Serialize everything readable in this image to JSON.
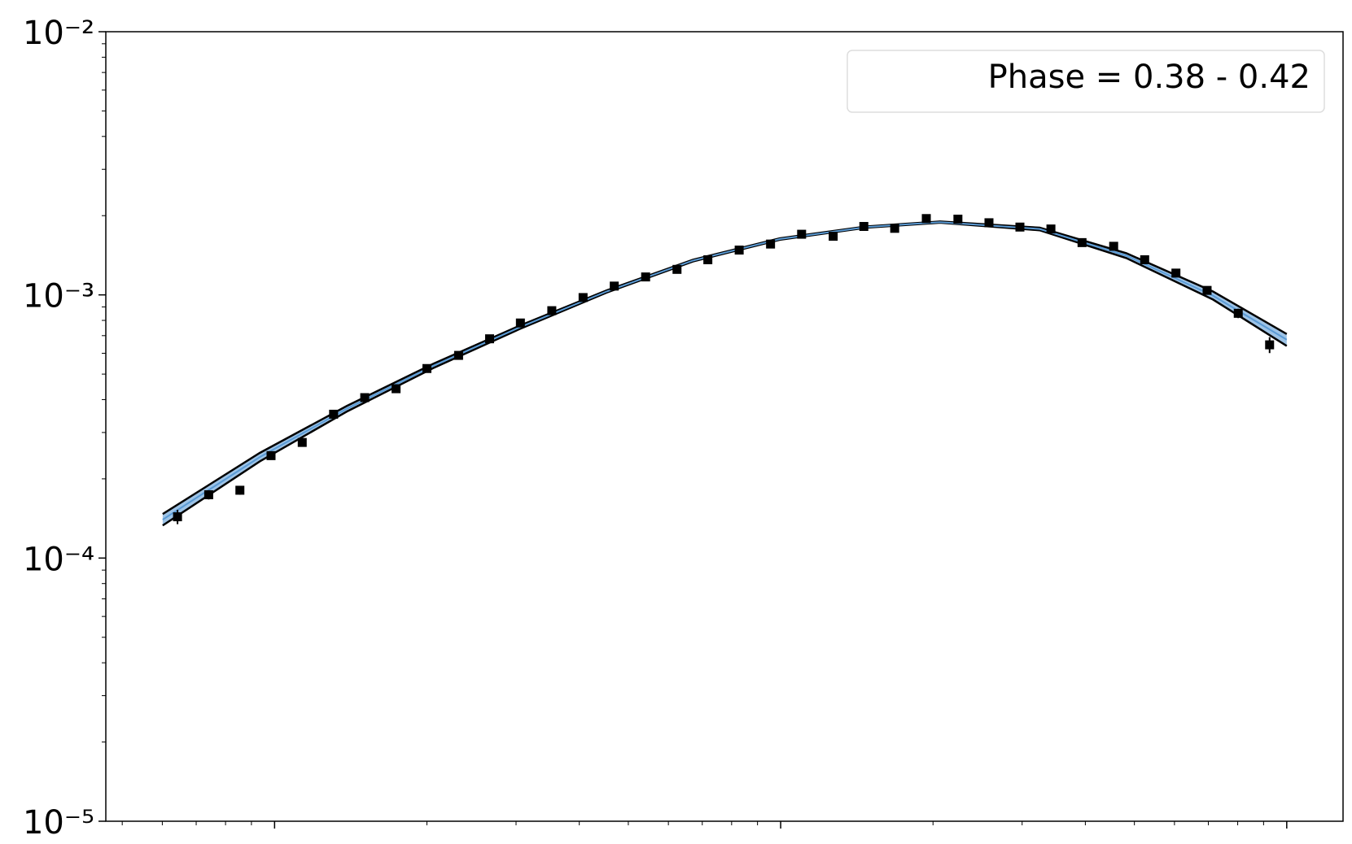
{
  "chart_data": {
    "type": "scatter",
    "log_x": true,
    "log_y": true,
    "xlim": [
      0.464,
      129.2
    ],
    "xticks": [
      1,
      10,
      100
    ],
    "ylim": [
      1e-05,
      0.01
    ],
    "yticks": [
      {
        "value": 0.01,
        "label": "10⁻²"
      },
      {
        "value": 0.001,
        "label": "10⁻³"
      },
      {
        "value": 0.0001,
        "label": "10⁻⁴"
      },
      {
        "value": 1e-05,
        "label": "10⁻⁵"
      }
    ],
    "legend_text": "Phase = 0.38 - 0.42",
    "legend_position": "upper right",
    "color": "#000000",
    "x": [
      0.643,
      0.741,
      0.854,
      0.984,
      1.134,
      1.308,
      1.507,
      1.738,
      2.0,
      2.31,
      2.66,
      3.06,
      3.53,
      4.07,
      4.69,
      5.41,
      6.24,
      7.18,
      8.28,
      9.55,
      11.0,
      12.7,
      14.6,
      16.8,
      19.4,
      22.4,
      25.8,
      29.7,
      34.2,
      39.4,
      45.5,
      52.4,
      60.4,
      69.6,
      80.2,
      92.5
    ],
    "values": [
      0.0001435,
      0.000174,
      0.000181,
      0.000245,
      0.000275,
      0.000352,
      0.000407,
      0.00044,
      0.000525,
      0.000589,
      0.000681,
      0.000782,
      0.000871,
      0.000977,
      0.00108,
      0.00117,
      0.00125,
      0.00136,
      0.00148,
      0.00156,
      0.0017,
      0.00167,
      0.00182,
      0.00179,
      0.00195,
      0.00194,
      0.00188,
      0.00181,
      0.00178,
      0.00158,
      0.00153,
      0.00136,
      0.00121,
      0.00104,
      0.000851,
      0.000646
    ],
    "errors": [
      9e-06,
      7e-06,
      7e-06,
      8e-06,
      8e-06,
      9e-06,
      1e-05,
      1e-05,
      1.1e-05,
      1.2e-05,
      1.3e-05,
      1.4e-05,
      1.5e-05,
      1.6e-05,
      1.7e-05,
      1.8e-05,
      1.9e-05,
      2e-05,
      2.1e-05,
      2.2e-05,
      2.4e-05,
      2.5e-05,
      2.7e-05,
      2.8e-05,
      3e-05,
      3e-05,
      3e-05,
      3e-05,
      3e-05,
      3e-05,
      3e-05,
      3e-05,
      3e-05,
      3.2e-05,
      3.5e-05,
      4.5e-05
    ],
    "model": {
      "color": "#5b9bd5",
      "edge_color": "#000000",
      "x": [
        0.601,
        0.935,
        1.388,
        2.057,
        3.05,
        4.53,
        6.71,
        9.96,
        14.78,
        20.65,
        32.5,
        48.2,
        71.5,
        100
      ],
      "values": [
        0.00014,
        0.000242,
        0.000369,
        0.000537,
        0.000753,
        0.00103,
        0.00135,
        0.00163,
        0.00181,
        0.00189,
        0.00178,
        0.00141,
        0.000993,
        0.000676
      ],
      "lower": [
        0.000133,
        0.000233,
        0.00036,
        0.000527,
        0.000742,
        0.00102,
        0.00134,
        0.00162,
        0.0018,
        0.00188,
        0.00176,
        0.00138,
        0.00096,
        0.00064
      ],
      "upper": [
        0.000147,
        0.000251,
        0.000378,
        0.000547,
        0.000764,
        0.00104,
        0.00136,
        0.00164,
        0.00182,
        0.0019,
        0.0018,
        0.00144,
        0.00103,
        0.00071
      ]
    }
  }
}
